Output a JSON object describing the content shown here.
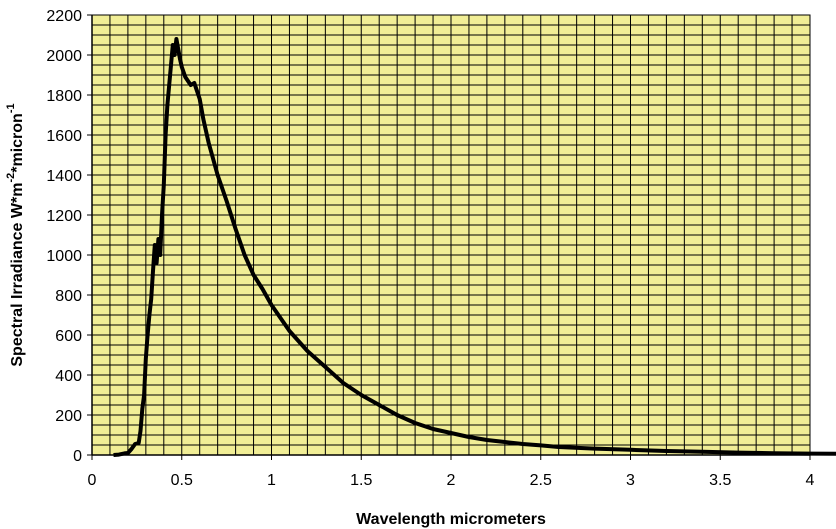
{
  "chart_data": {
    "type": "line",
    "title": "",
    "xlabel": "Wavelength micrometers",
    "ylabel": {
      "part1": "Spectral Irradiance W*m",
      "sup1": "-2",
      "part2": "*micron",
      "sup2": "-1"
    },
    "xlim": [
      0,
      4
    ],
    "ylim": [
      0,
      2200
    ],
    "x_ticks": [
      "0",
      "0.5",
      "1",
      "1.5",
      "2",
      "2.5",
      "3",
      "3.5",
      "4"
    ],
    "y_ticks": [
      "0",
      "200",
      "400",
      "600",
      "800",
      "1000",
      "1200",
      "1400",
      "1600",
      "1800",
      "2000",
      "2200"
    ],
    "grid": true,
    "legend": "none",
    "colors": {
      "plot_background": "#f1ee96",
      "grid": "#000000",
      "series": "#000000"
    },
    "series": [
      {
        "values": [
          [
            0.12,
            0
          ],
          [
            0.15,
            2
          ],
          [
            0.18,
            8
          ],
          [
            0.2,
            10
          ],
          [
            0.22,
            30
          ],
          [
            0.24,
            55
          ],
          [
            0.26,
            60
          ],
          [
            0.27,
            120
          ],
          [
            0.28,
            230
          ],
          [
            0.29,
            300
          ],
          [
            0.3,
            480
          ],
          [
            0.31,
            600
          ],
          [
            0.32,
            700
          ],
          [
            0.33,
            780
          ],
          [
            0.34,
            920
          ],
          [
            0.35,
            1050
          ],
          [
            0.36,
            960
          ],
          [
            0.37,
            1080
          ],
          [
            0.38,
            1000
          ],
          [
            0.39,
            1200
          ],
          [
            0.4,
            1350
          ],
          [
            0.41,
            1600
          ],
          [
            0.42,
            1750
          ],
          [
            0.43,
            1850
          ],
          [
            0.44,
            1950
          ],
          [
            0.45,
            2050
          ],
          [
            0.46,
            2000
          ],
          [
            0.47,
            2080
          ],
          [
            0.48,
            2030
          ],
          [
            0.49,
            1980
          ],
          [
            0.5,
            1940
          ],
          [
            0.52,
            1890
          ],
          [
            0.55,
            1850
          ],
          [
            0.57,
            1860
          ],
          [
            0.6,
            1780
          ],
          [
            0.62,
            1680
          ],
          [
            0.65,
            1560
          ],
          [
            0.7,
            1400
          ],
          [
            0.75,
            1270
          ],
          [
            0.8,
            1130
          ],
          [
            0.85,
            1000
          ],
          [
            0.9,
            900
          ],
          [
            0.95,
            830
          ],
          [
            1.0,
            750
          ],
          [
            1.1,
            620
          ],
          [
            1.2,
            520
          ],
          [
            1.3,
            440
          ],
          [
            1.4,
            360
          ],
          [
            1.5,
            300
          ],
          [
            1.6,
            250
          ],
          [
            1.7,
            200
          ],
          [
            1.8,
            160
          ],
          [
            1.9,
            130
          ],
          [
            2.0,
            110
          ],
          [
            2.1,
            90
          ],
          [
            2.2,
            75
          ],
          [
            2.3,
            65
          ],
          [
            2.4,
            55
          ],
          [
            2.5,
            48
          ],
          [
            2.6,
            40
          ],
          [
            2.8,
            32
          ],
          [
            3.0,
            26
          ],
          [
            3.2,
            20
          ],
          [
            3.4,
            16
          ],
          [
            3.6,
            12
          ],
          [
            3.8,
            9
          ],
          [
            4.0,
            7
          ],
          [
            4.15,
            6
          ]
        ]
      }
    ]
  }
}
